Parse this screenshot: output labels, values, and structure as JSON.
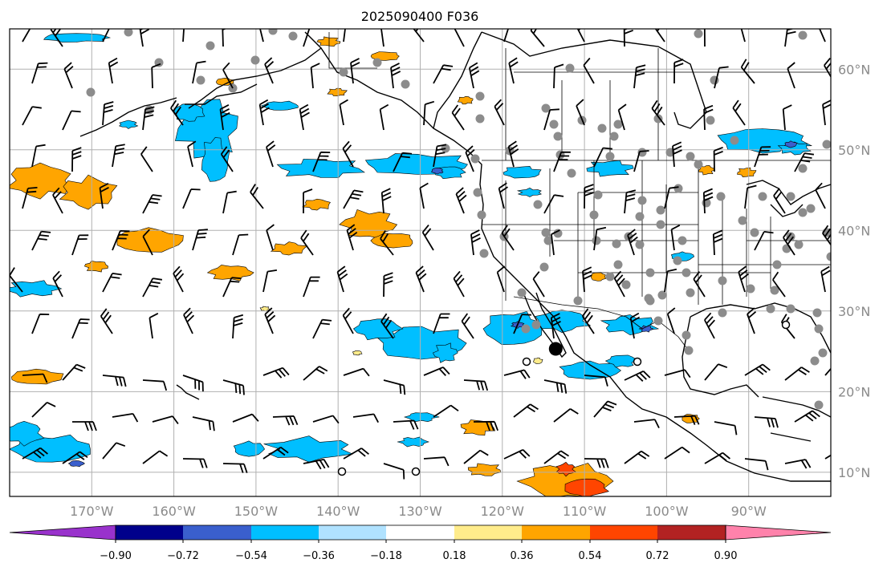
{
  "title": "2025090400 F036",
  "map": {
    "lon_range": [
      -180,
      -80
    ],
    "lat_range": [
      7,
      65
    ],
    "lon_ticks": [
      {
        "value": -170,
        "label": "170°W"
      },
      {
        "value": -160,
        "label": "160°W"
      },
      {
        "value": -150,
        "label": "150°W"
      },
      {
        "value": -140,
        "label": "140°W"
      },
      {
        "value": -130,
        "label": "130°W"
      },
      {
        "value": -120,
        "label": "120°W"
      },
      {
        "value": -110,
        "label": "110°W"
      },
      {
        "value": -100,
        "label": "100°W"
      },
      {
        "value": -90,
        "label": "90°W"
      }
    ],
    "lat_ticks": [
      {
        "value": 60,
        "label": "60°N"
      },
      {
        "value": 50,
        "label": "50°N"
      },
      {
        "value": 40,
        "label": "40°N"
      },
      {
        "value": 30,
        "label": "30°N"
      },
      {
        "value": 20,
        "label": "20°N"
      },
      {
        "value": 10,
        "label": "10°N"
      }
    ],
    "grid": true,
    "storm_center": {
      "lon": -113.5,
      "lat": 25.3
    }
  },
  "colorbar": {
    "colors": [
      "#9932cc",
      "#00008b",
      "#3a5fcd",
      "#00bfff",
      "#b0e2ff",
      "#ffffff",
      "#ffec8b",
      "#ffa500",
      "#ff4500",
      "#b22222",
      "#ff82ab"
    ],
    "ticks": [
      "−0.90",
      "−0.72",
      "−0.54",
      "−0.36",
      "−0.18",
      "0.18",
      "0.36",
      "0.54",
      "0.72",
      "0.90"
    ],
    "extend": "both"
  }
}
